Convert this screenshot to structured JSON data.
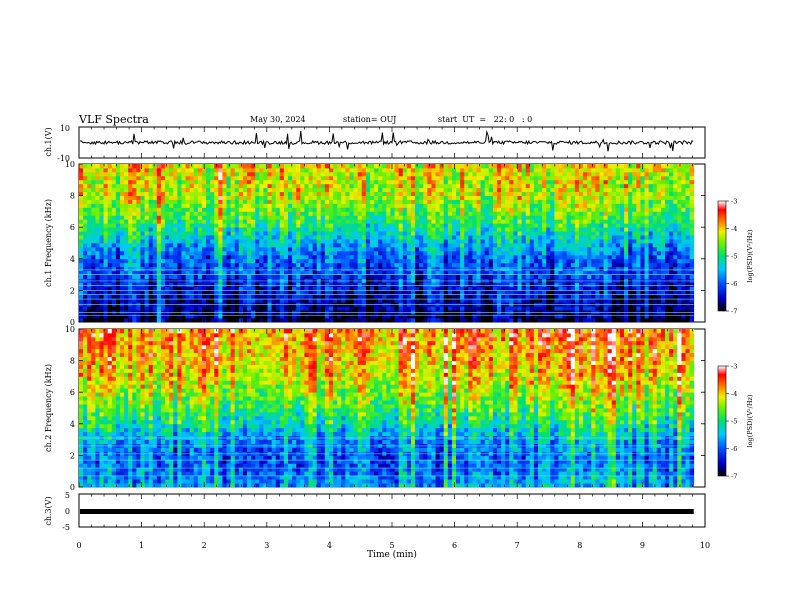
{
  "header": {
    "title": "VLF Spectra",
    "date": "May 30, 2024",
    "station": "station= OUJ",
    "start": "start  UT  =   22: 0   : 0"
  },
  "chart_data": [
    {
      "type": "line",
      "name": "ch1-waveform",
      "ylabel": "ch.1(V)",
      "ylim": [
        -10,
        10
      ],
      "yticks": [
        "10",
        "-10"
      ],
      "xlim": [
        0,
        10
      ],
      "baseline": 0,
      "trace_xmax": 9.82
    },
    {
      "type": "heatmap",
      "name": "ch1-spectrogram",
      "ylabel": "ch.1 Frequency (kHz)",
      "ylim": [
        0,
        10
      ],
      "yticks": [
        0,
        2,
        4,
        6,
        8,
        10
      ],
      "xlim": [
        0,
        10
      ],
      "data_xmax": 9.82,
      "colorbar": {
        "label": "log(PSD)(V²/Hz)",
        "range": [
          -7,
          -3
        ],
        "ticks": [
          "-3",
          "-4",
          "-5",
          "-6",
          "-7"
        ]
      },
      "level_profile": [
        {
          "f": 0.0,
          "v": -6.9
        },
        {
          "f": 1.0,
          "v": -6.6
        },
        {
          "f": 2.0,
          "v": -6.4
        },
        {
          "f": 3.0,
          "v": -6.1
        },
        {
          "f": 4.0,
          "v": -5.9
        },
        {
          "f": 5.0,
          "v": -5.5
        },
        {
          "f": 6.0,
          "v": -5.0
        },
        {
          "f": 7.0,
          "v": -4.6
        },
        {
          "f": 8.0,
          "v": -4.3
        },
        {
          "f": 9.0,
          "v": -4.2
        },
        {
          "f": 10.0,
          "v": -4.1
        }
      ],
      "tone_lines_khz": [
        0.4,
        0.6,
        1.1,
        1.45,
        1.75,
        2.0,
        2.3,
        2.6,
        3.0,
        3.3
      ]
    },
    {
      "type": "heatmap",
      "name": "ch2-spectrogram",
      "ylabel": "ch.2 Frequency (kHz)",
      "ylim": [
        0,
        10
      ],
      "yticks": [
        0,
        2,
        4,
        6,
        8,
        10
      ],
      "xlim": [
        0,
        10
      ],
      "data_xmax": 9.82,
      "colorbar": {
        "label": "log(PSD)(V²/Hz)",
        "range": [
          -7,
          -3
        ],
        "ticks": [
          "-3",
          "-4",
          "-5",
          "-6",
          "-7"
        ]
      },
      "level_profile": [
        {
          "f": 0.0,
          "v": -5.6
        },
        {
          "f": 1.0,
          "v": -5.8
        },
        {
          "f": 2.0,
          "v": -5.9
        },
        {
          "f": 3.0,
          "v": -5.6
        },
        {
          "f": 4.0,
          "v": -5.1
        },
        {
          "f": 5.0,
          "v": -4.7
        },
        {
          "f": 6.0,
          "v": -4.4
        },
        {
          "f": 7.0,
          "v": -4.1
        },
        {
          "f": 8.0,
          "v": -3.9
        },
        {
          "f": 9.0,
          "v": -3.8
        },
        {
          "f": 10.0,
          "v": -3.7
        }
      ],
      "tone_lines_khz": [
        0.7,
        1.2,
        1.7,
        2.1,
        2.6,
        3.1
      ]
    },
    {
      "type": "line",
      "name": "ch3-waveform",
      "ylabel": "ch.3(V)",
      "ylim": [
        -5,
        5
      ],
      "yticks": [
        "5",
        "0",
        "-5"
      ],
      "xlim": [
        0,
        10
      ],
      "level": -0.3,
      "trace_xmax": 9.82
    }
  ],
  "xaxis": {
    "label": "Time  (min)",
    "range": [
      0,
      10
    ],
    "ticks": [
      "0",
      "1",
      "2",
      "3",
      "4",
      "5",
      "6",
      "7",
      "8",
      "9",
      "10"
    ]
  }
}
